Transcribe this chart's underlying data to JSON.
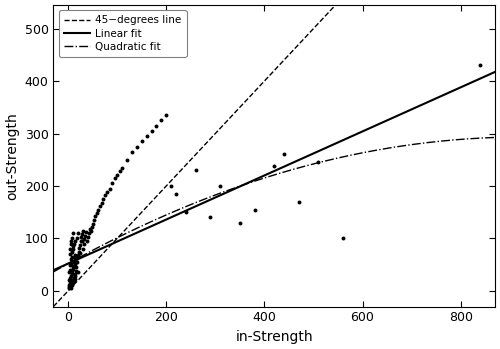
{
  "title": "",
  "xlabel": "in-Strength",
  "ylabel": "out-Strength",
  "xlim": [
    -30,
    870
  ],
  "ylim": [
    -30,
    545
  ],
  "xticks": [
    0,
    200,
    400,
    600,
    800
  ],
  "yticks": [
    0,
    100,
    200,
    300,
    400,
    500
  ],
  "background_color": "#ffffff",
  "scatter_color": "#000000",
  "scatter_size": 8,
  "linear_intercept": 52,
  "linear_slope": 0.42,
  "quad_a": -0.00028,
  "quad_b": 0.52,
  "quad_c": 52,
  "legend_labels": [
    "45−degrees line",
    "Linear fit",
    "Quadratic fit"
  ],
  "points_x": [
    1,
    1,
    2,
    2,
    2,
    3,
    3,
    3,
    3,
    4,
    4,
    4,
    5,
    5,
    5,
    5,
    5,
    6,
    6,
    6,
    6,
    7,
    7,
    7,
    8,
    8,
    8,
    8,
    9,
    9,
    9,
    10,
    10,
    10,
    10,
    11,
    11,
    12,
    12,
    12,
    13,
    13,
    14,
    14,
    15,
    15,
    15,
    16,
    17,
    18,
    18,
    19,
    20,
    20,
    21,
    22,
    23,
    24,
    25,
    26,
    27,
    28,
    29,
    30,
    30,
    32,
    33,
    35,
    36,
    38,
    40,
    42,
    44,
    46,
    48,
    50,
    52,
    55,
    58,
    60,
    64,
    68,
    72,
    75,
    80,
    85,
    90,
    95,
    100,
    105,
    110,
    120,
    130,
    140,
    150,
    160,
    170,
    180,
    190,
    200,
    210,
    220,
    240,
    260,
    290,
    310,
    350,
    380,
    420,
    440,
    470,
    510,
    560,
    840
  ],
  "points_y": [
    5,
    12,
    8,
    20,
    35,
    10,
    25,
    50,
    70,
    15,
    40,
    80,
    5,
    18,
    35,
    60,
    90,
    10,
    28,
    52,
    95,
    15,
    38,
    75,
    12,
    32,
    65,
    100,
    18,
    42,
    80,
    20,
    45,
    85,
    110,
    25,
    55,
    18,
    48,
    90,
    28,
    62,
    32,
    68,
    22,
    52,
    95,
    38,
    45,
    55,
    100,
    62,
    35,
    110,
    68,
    75,
    82,
    88,
    72,
    95,
    102,
    108,
    95,
    80,
    115,
    90,
    98,
    105,
    112,
    95,
    102,
    110,
    118,
    115,
    122,
    128,
    135,
    142,
    148,
    155,
    162,
    168,
    175,
    182,
    188,
    195,
    205,
    215,
    220,
    228,
    235,
    250,
    265,
    275,
    285,
    295,
    305,
    315,
    325,
    335,
    200,
    185,
    150,
    230,
    140,
    200,
    130,
    155,
    238,
    260,
    170,
    245,
    100,
    430
  ]
}
